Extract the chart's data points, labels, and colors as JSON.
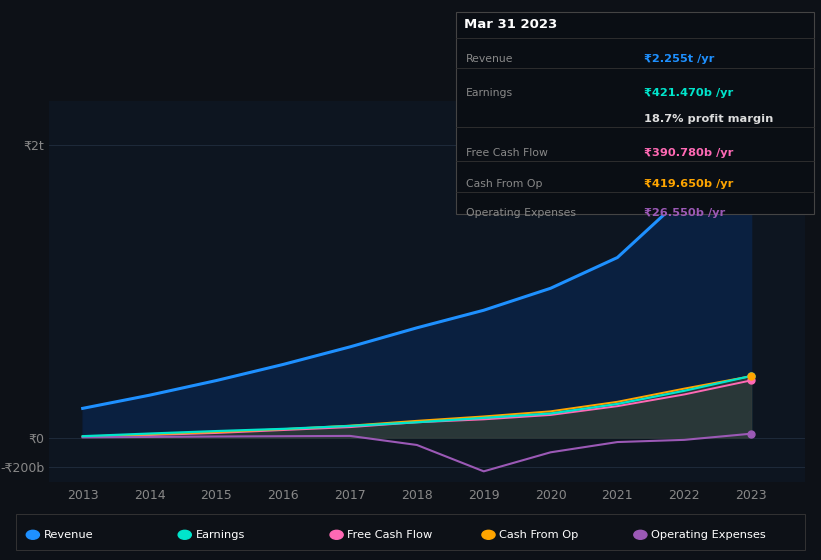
{
  "background_color": "#0d1117",
  "plot_bg_color": "#0d1520",
  "years": [
    2013,
    2014,
    2015,
    2016,
    2017,
    2018,
    2019,
    2020,
    2021,
    2022,
    2023
  ],
  "revenue": [
    200,
    290,
    390,
    500,
    620,
    750,
    870,
    1020,
    1230,
    1650,
    2255
  ],
  "earnings": [
    10,
    28,
    45,
    60,
    80,
    105,
    135,
    165,
    230,
    320,
    421
  ],
  "free_cash_flow": [
    5,
    18,
    32,
    52,
    72,
    105,
    125,
    155,
    215,
    295,
    391
  ],
  "cash_from_op": [
    8,
    22,
    38,
    58,
    82,
    115,
    145,
    180,
    245,
    335,
    420
  ],
  "operating_expenses": [
    2,
    5,
    8,
    10,
    12,
    -50,
    -230,
    -100,
    -30,
    -15,
    27
  ],
  "revenue_color": "#1e90ff",
  "earnings_color": "#00e5cc",
  "free_cash_flow_color": "#ff69b4",
  "cash_from_op_color": "#ffa500",
  "operating_expenses_color": "#9b59b6",
  "revenue_fill_color": "#0a2040",
  "earnings_fill_color": "#0a3535",
  "cash_op_fill_color": "#3a3a3a",
  "ylim_min": -300,
  "ylim_max": 2300,
  "ytick_vals": [
    -200,
    0,
    2000
  ],
  "ytick_labels": [
    "-₹200b",
    "₹0",
    "₹2t"
  ],
  "info_title": "Mar 31 2023",
  "info_rows": [
    {
      "label": "Revenue",
      "value": "₹2.255t /yr",
      "value_color": "#1e90ff"
    },
    {
      "label": "Earnings",
      "value": "₹421.470b /yr",
      "value_color": "#00e5cc"
    },
    {
      "label": "",
      "value": "18.7% profit margin",
      "value_color": "#dddddd"
    },
    {
      "label": "Free Cash Flow",
      "value": "₹390.780b /yr",
      "value_color": "#ff69b4"
    },
    {
      "label": "Cash From Op",
      "value": "₹419.650b /yr",
      "value_color": "#ffa500"
    },
    {
      "label": "Operating Expenses",
      "value": "₹26.550b /yr",
      "value_color": "#9b59b6"
    }
  ],
  "legend_items": [
    {
      "label": "Revenue",
      "color": "#1e90ff"
    },
    {
      "label": "Earnings",
      "color": "#00e5cc"
    },
    {
      "label": "Free Cash Flow",
      "color": "#ff69b4"
    },
    {
      "label": "Cash From Op",
      "color": "#ffa500"
    },
    {
      "label": "Operating Expenses",
      "color": "#9b59b6"
    }
  ]
}
